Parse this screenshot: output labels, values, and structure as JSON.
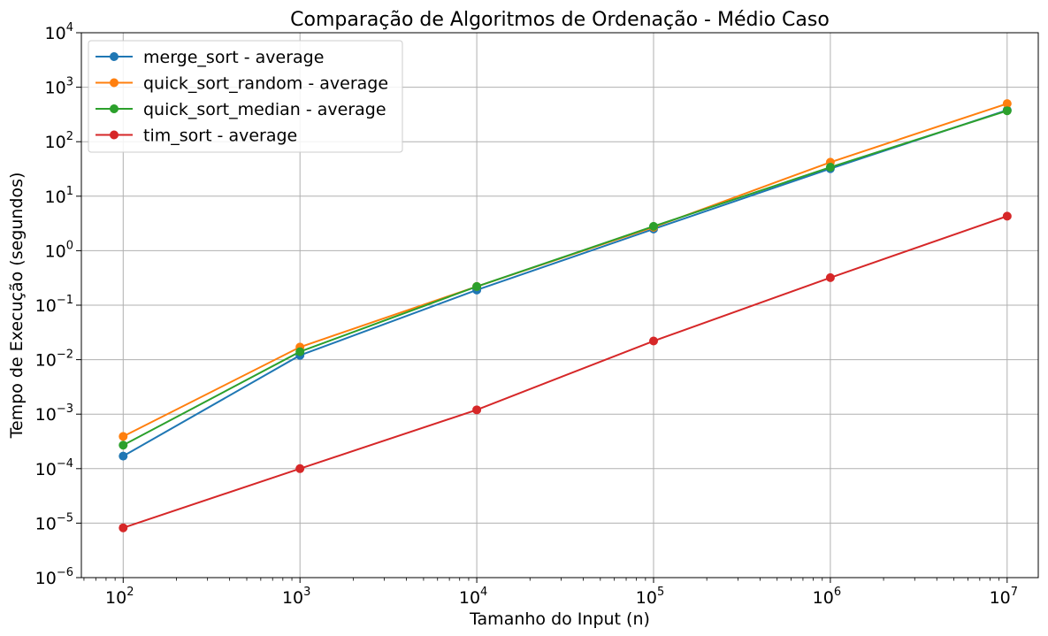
{
  "chart_data": {
    "type": "line",
    "title": "Comparação de Algoritmos de Ordenação - Médio Caso",
    "xlabel": "Tamanho do Input (n)",
    "ylabel": "Tempo de Execução (segundos)",
    "xscale": "log",
    "yscale": "log",
    "x": [
      100,
      1000,
      10000,
      100000,
      1000000,
      10000000
    ],
    "xlim": [
      58,
      15000000
    ],
    "ylim": [
      1e-06,
      10000
    ],
    "x_ticks": [
      {
        "base": "10",
        "exp": "2"
      },
      {
        "base": "10",
        "exp": "3"
      },
      {
        "base": "10",
        "exp": "4"
      },
      {
        "base": "10",
        "exp": "5"
      },
      {
        "base": "10",
        "exp": "6"
      },
      {
        "base": "10",
        "exp": "7"
      }
    ],
    "y_ticks": [
      {
        "base": "10",
        "exp": "−6"
      },
      {
        "base": "10",
        "exp": "−5"
      },
      {
        "base": "10",
        "exp": "−4"
      },
      {
        "base": "10",
        "exp": "−3"
      },
      {
        "base": "10",
        "exp": "−2"
      },
      {
        "base": "10",
        "exp": "−1"
      },
      {
        "base": "10",
        "exp": "0"
      },
      {
        "base": "10",
        "exp": "1"
      },
      {
        "base": "10",
        "exp": "2"
      },
      {
        "base": "10",
        "exp": "3"
      },
      {
        "base": "10",
        "exp": "4"
      }
    ],
    "grid": true,
    "legend_position": "upper-left",
    "series": [
      {
        "name": "merge_sort - average",
        "color": "#1f77b4",
        "values": [
          0.00017,
          0.012,
          0.19,
          2.5,
          32,
          380
        ]
      },
      {
        "name": "quick_sort_random - average",
        "color": "#ff7f0e",
        "values": [
          0.00039,
          0.017,
          0.22,
          2.7,
          42,
          500
        ]
      },
      {
        "name": "quick_sort_median - average",
        "color": "#2ca02c",
        "values": [
          0.00027,
          0.014,
          0.22,
          2.8,
          34,
          370
        ]
      },
      {
        "name": "tim_sort - average",
        "color": "#d62728",
        "values": [
          8.2e-06,
          0.0001,
          0.0012,
          0.022,
          0.32,
          4.3
        ]
      }
    ]
  }
}
